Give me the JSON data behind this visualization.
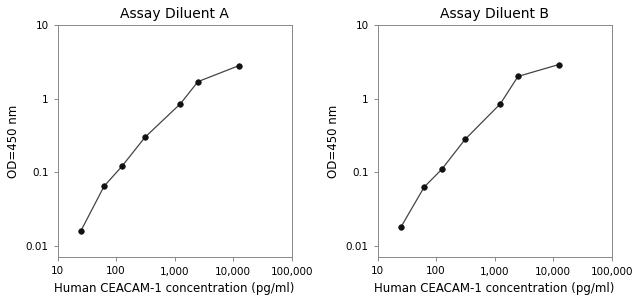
{
  "panel_A": {
    "title": "Assay Diluent A",
    "x": [
      25,
      62.5,
      125,
      312.5,
      1250,
      2500,
      12500
    ],
    "y": [
      0.016,
      0.065,
      0.12,
      0.3,
      0.85,
      1.7,
      2.8
    ]
  },
  "panel_B": {
    "title": "Assay Diluent B",
    "x": [
      25,
      62.5,
      125,
      312.5,
      1250,
      2500,
      12500
    ],
    "y": [
      0.018,
      0.063,
      0.11,
      0.28,
      0.85,
      2.0,
      2.9
    ]
  },
  "xlabel": "Human CEACAM-1 concentration (pg/ml)",
  "ylabel": "OD=450 nm",
  "xlim": [
    10,
    100000
  ],
  "ylim": [
    0.007,
    10
  ],
  "xticks": [
    10,
    100,
    1000,
    10000,
    100000
  ],
  "xticklabels": [
    "10",
    "100",
    "1,000",
    "10,000",
    "100,000"
  ],
  "yticks": [
    0.01,
    0.1,
    1,
    10
  ],
  "yticklabels": [
    "0.01",
    "0.1",
    "1",
    "10"
  ],
  "line_color": "#444444",
  "marker_color": "#111111",
  "marker_size": 4,
  "bg_color": "#ffffff",
  "title_fontsize": 10,
  "label_fontsize": 8.5,
  "tick_fontsize": 7.5
}
